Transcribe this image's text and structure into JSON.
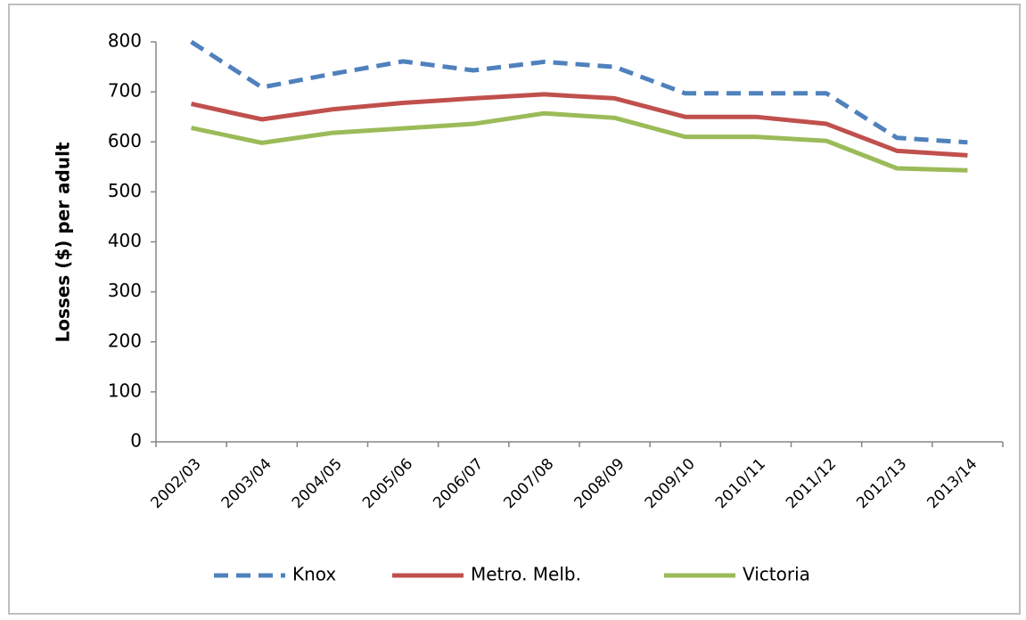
{
  "chart_data": {
    "type": "line",
    "y_label": "Losses ($) per adult",
    "categories": [
      "2002/03",
      "2003/04",
      "2004/05",
      "2005/06",
      "2006/07",
      "2007/08",
      "2008/09",
      "2009/10",
      "2010/11",
      "2011/12",
      "2012/13",
      "2013/14"
    ],
    "series": [
      {
        "name": "Knox",
        "color": "#4f81bd",
        "dashed": true,
        "values": [
          800,
          709,
          736,
          761,
          743,
          760,
          750,
          697,
          697,
          697,
          608,
          599
        ]
      },
      {
        "name": "Metro. Melb.",
        "color": "#c0504d",
        "dashed": false,
        "values": [
          676,
          645,
          665,
          678,
          687,
          695,
          687,
          650,
          650,
          636,
          582,
          573
        ]
      },
      {
        "name": "Victoria",
        "color": "#9bbb59",
        "dashed": false,
        "values": [
          628,
          598,
          618,
          627,
          636,
          657,
          648,
          610,
          610,
          602,
          547,
          543
        ]
      }
    ],
    "ylim": [
      0,
      800
    ],
    "yticks": [
      0,
      100,
      200,
      300,
      400,
      500,
      600,
      700,
      800
    ],
    "grid": false,
    "legend": "bottom"
  }
}
